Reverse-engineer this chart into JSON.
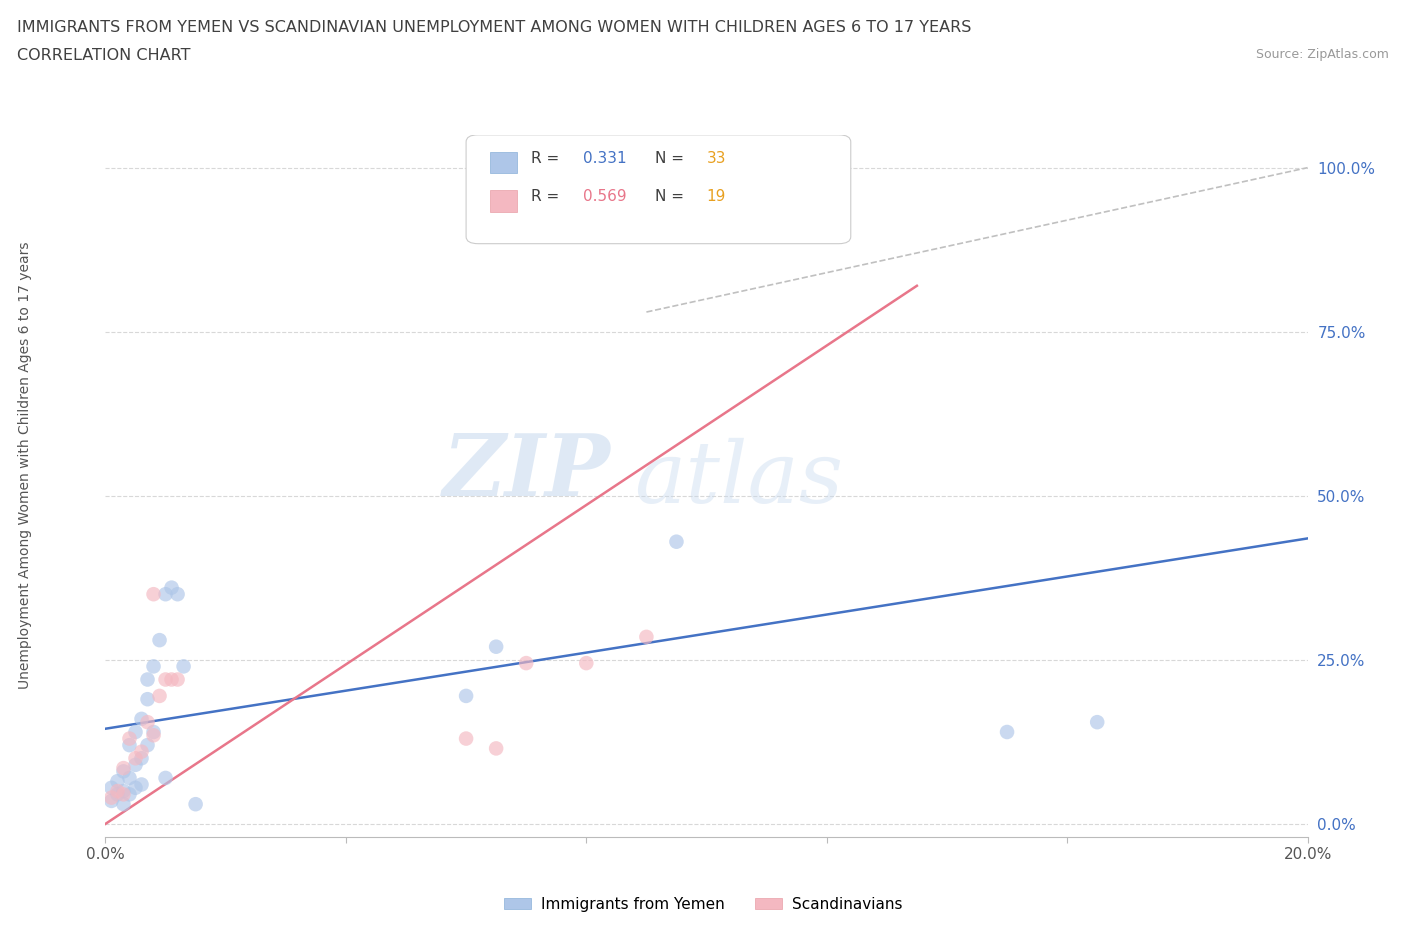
{
  "title": "IMMIGRANTS FROM YEMEN VS SCANDINAVIAN UNEMPLOYMENT AMONG WOMEN WITH CHILDREN AGES 6 TO 17 YEARS",
  "subtitle": "CORRELATION CHART",
  "source": "Source: ZipAtlas.com",
  "ylabel": "Unemployment Among Women with Children Ages 6 to 17 years",
  "xlim": [
    0.0,
    0.2
  ],
  "ylim": [
    -0.02,
    1.05
  ],
  "xticks": [
    0.0,
    0.04,
    0.08,
    0.12,
    0.16,
    0.2
  ],
  "yticks": [
    0.0,
    0.25,
    0.5,
    0.75,
    1.0
  ],
  "ytick_labels": [
    "0.0%",
    "25.0%",
    "50.0%",
    "75.0%",
    "100.0%"
  ],
  "xtick_labels": [
    "0.0%",
    "",
    "",
    "",
    "",
    "20.0%"
  ],
  "legend_entries": [
    {
      "label": "Immigrants from Yemen",
      "R": "0.331",
      "N": "33",
      "color": "#aec6e8"
    },
    {
      "label": "Scandinavians",
      "R": "0.569",
      "N": "19",
      "color": "#f4b8c1"
    }
  ],
  "watermark_zip": "ZIP",
  "watermark_atlas": "atlas",
  "background_color": "#ffffff",
  "grid_color": "#d8d8d8",
  "blue_scatter_color": "#aec6e8",
  "pink_scatter_color": "#f4b8c1",
  "blue_line_color": "#4472c4",
  "pink_line_color": "#e8768a",
  "ref_line_color": "#c0c0c0",
  "title_color": "#404040",
  "axis_label_color": "#555555",
  "ytick_color": "#4472c4",
  "scatter_size": 110,
  "scatter_alpha": 0.65,
  "blue_points_x": [
    0.001,
    0.001,
    0.002,
    0.002,
    0.003,
    0.003,
    0.003,
    0.004,
    0.004,
    0.004,
    0.005,
    0.005,
    0.005,
    0.006,
    0.006,
    0.006,
    0.007,
    0.007,
    0.007,
    0.008,
    0.008,
    0.009,
    0.01,
    0.01,
    0.011,
    0.012,
    0.013,
    0.015,
    0.06,
    0.065,
    0.095,
    0.15,
    0.165
  ],
  "blue_points_y": [
    0.035,
    0.055,
    0.045,
    0.065,
    0.03,
    0.05,
    0.08,
    0.045,
    0.07,
    0.12,
    0.055,
    0.09,
    0.14,
    0.06,
    0.1,
    0.16,
    0.12,
    0.19,
    0.22,
    0.14,
    0.24,
    0.28,
    0.07,
    0.35,
    0.36,
    0.35,
    0.24,
    0.03,
    0.195,
    0.27,
    0.43,
    0.14,
    0.155
  ],
  "pink_points_x": [
    0.001,
    0.002,
    0.003,
    0.003,
    0.004,
    0.005,
    0.006,
    0.007,
    0.008,
    0.008,
    0.009,
    0.01,
    0.011,
    0.012,
    0.06,
    0.065,
    0.07,
    0.08,
    0.09
  ],
  "pink_points_y": [
    0.04,
    0.05,
    0.045,
    0.085,
    0.13,
    0.1,
    0.11,
    0.155,
    0.135,
    0.35,
    0.195,
    0.22,
    0.22,
    0.22,
    0.13,
    0.115,
    0.245,
    0.245,
    0.285
  ],
  "blue_line_x": [
    0.0,
    0.2
  ],
  "blue_line_y": [
    0.145,
    0.435
  ],
  "pink_line_x": [
    0.0,
    0.135
  ],
  "pink_line_y": [
    0.0,
    0.82
  ],
  "ref_line_x": [
    0.09,
    0.2
  ],
  "ref_line_y": [
    0.78,
    1.0
  ]
}
